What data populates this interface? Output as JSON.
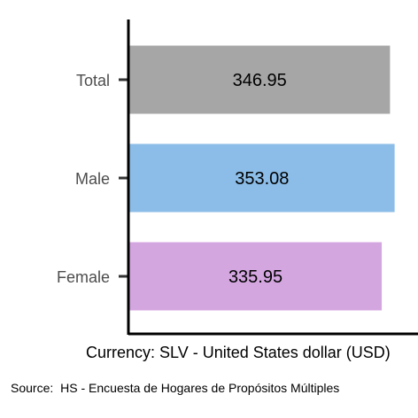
{
  "chart_data": {
    "type": "bar",
    "orientation": "horizontal",
    "categories": [
      "Total",
      "Male",
      "Female"
    ],
    "values": [
      346.95,
      353.08,
      335.95
    ],
    "data_labels": [
      "346.95",
      "353.08",
      "335.95"
    ],
    "colors": [
      "#a6a6a6",
      "#8bbde8",
      "#d4a6e0"
    ],
    "xlabel": "Currency: SLV - United States dollar (USD)",
    "ylabel": "",
    "title": "",
    "grid": false,
    "legend": "none"
  },
  "source": {
    "prefix": "Source:",
    "text": "HS - Encuesta de Hogares de Propósitos Múltiples"
  }
}
